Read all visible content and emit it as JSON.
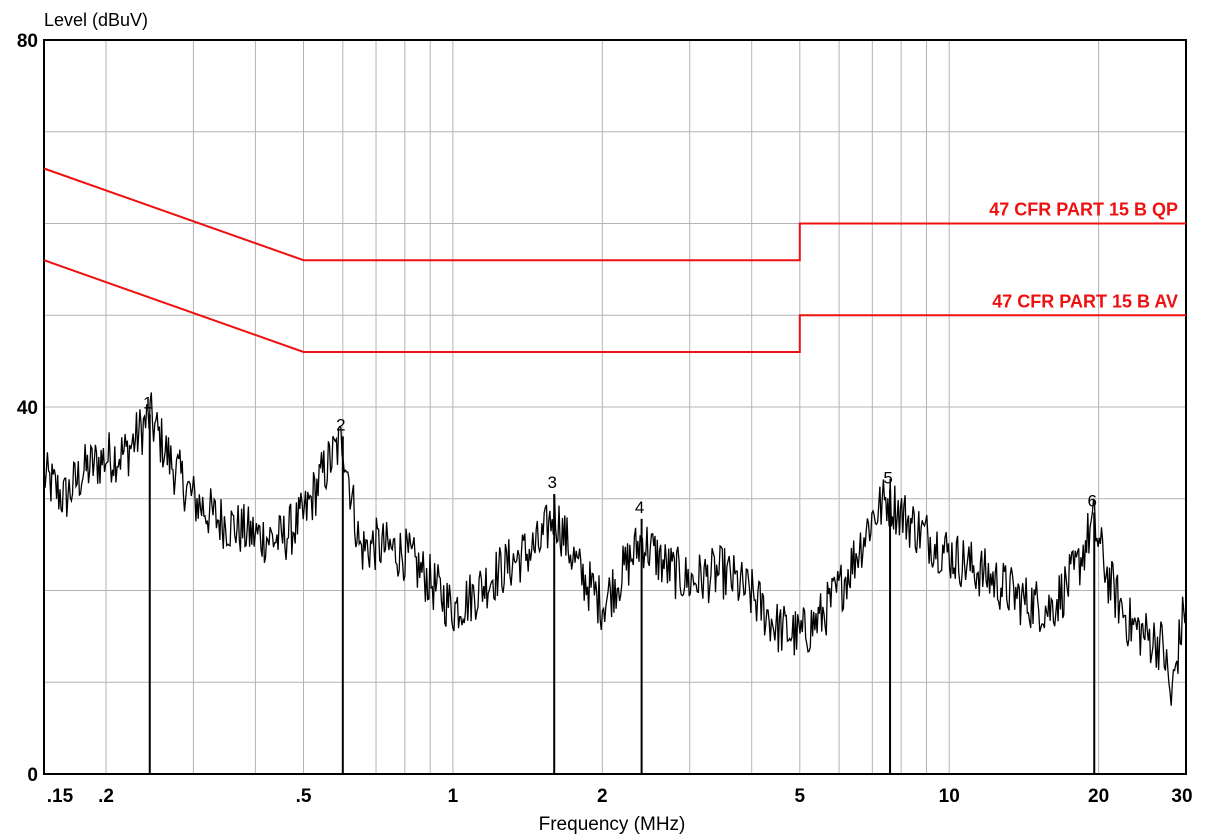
{
  "chart_data": {
    "type": "line",
    "ylabel": "Level (dBuV)",
    "xlabel": "Frequency (MHz)",
    "x_scale": "log",
    "xlim": [
      0.15,
      30
    ],
    "ylim": [
      0,
      80
    ],
    "grid": true,
    "x_ticks": [
      {
        "value": 0.15,
        "label": ".15"
      },
      {
        "value": 0.2,
        "label": ".2"
      },
      {
        "value": 0.5,
        "label": ".5"
      },
      {
        "value": 1,
        "label": "1"
      },
      {
        "value": 2,
        "label": "2"
      },
      {
        "value": 5,
        "label": "5"
      },
      {
        "value": 10,
        "label": "10"
      },
      {
        "value": 20,
        "label": "20"
      },
      {
        "value": 30,
        "label": "30"
      }
    ],
    "y_ticks": [
      {
        "value": 0,
        "label": "0"
      },
      {
        "value": 40,
        "label": "40"
      },
      {
        "value": 80,
        "label": "80"
      }
    ],
    "limit_lines": [
      {
        "name": "47 CFR PART 15 B QP",
        "color": "#ee1111",
        "points": [
          [
            0.15,
            66
          ],
          [
            0.5,
            56
          ],
          [
            5,
            56
          ],
          [
            5,
            60
          ],
          [
            30,
            60
          ]
        ]
      },
      {
        "name": "47 CFR PART 15 B AV",
        "color": "#ee1111",
        "points": [
          [
            0.15,
            56
          ],
          [
            0.5,
            46
          ],
          [
            5,
            46
          ],
          [
            5,
            50
          ],
          [
            30,
            50
          ]
        ]
      }
    ],
    "trace": {
      "color": "#000000",
      "points": [
        [
          0.15,
          32.5
        ],
        [
          0.165,
          30
        ],
        [
          0.18,
          33
        ],
        [
          0.2,
          34.5
        ],
        [
          0.22,
          35
        ],
        [
          0.245,
          39
        ],
        [
          0.27,
          34
        ],
        [
          0.3,
          30
        ],
        [
          0.33,
          28
        ],
        [
          0.36,
          27
        ],
        [
          0.4,
          26
        ],
        [
          0.45,
          25.5
        ],
        [
          0.5,
          28
        ],
        [
          0.55,
          33
        ],
        [
          0.6,
          36.5
        ],
        [
          0.65,
          24.5
        ],
        [
          0.7,
          25
        ],
        [
          0.8,
          24
        ],
        [
          0.9,
          21
        ],
        [
          1.0,
          18
        ],
        [
          1.1,
          19.5
        ],
        [
          1.2,
          21.5
        ],
        [
          1.35,
          23.5
        ],
        [
          1.5,
          25
        ],
        [
          1.6,
          28.5
        ],
        [
          1.8,
          22
        ],
        [
          2.0,
          18.5
        ],
        [
          2.2,
          22
        ],
        [
          2.4,
          25.5
        ],
        [
          2.7,
          22.5
        ],
        [
          3.0,
          21
        ],
        [
          3.5,
          22
        ],
        [
          4.0,
          19.5
        ],
        [
          4.5,
          16
        ],
        [
          5.0,
          15
        ],
        [
          5.5,
          17
        ],
        [
          6.0,
          20
        ],
        [
          6.5,
          24
        ],
        [
          7.0,
          28
        ],
        [
          7.5,
          30
        ],
        [
          8.5,
          27
        ],
        [
          10.0,
          24
        ],
        [
          12.0,
          21.5
        ],
        [
          14.0,
          19
        ],
        [
          16.0,
          18
        ],
        [
          18.0,
          22
        ],
        [
          19.5,
          27.5
        ],
        [
          21.0,
          21
        ],
        [
          23.0,
          16.5
        ],
        [
          25.0,
          15
        ],
        [
          27.0,
          14
        ],
        [
          28.0,
          8
        ],
        [
          29.0,
          14
        ],
        [
          30.0,
          19
        ]
      ]
    },
    "markers": [
      {
        "label": "1",
        "freq": 0.245,
        "level": 39.2
      },
      {
        "label": "2",
        "freq": 0.6,
        "level": 36.8
      },
      {
        "label": "3",
        "freq": 1.6,
        "level": 30.5
      },
      {
        "label": "4",
        "freq": 2.4,
        "level": 27.8
      },
      {
        "label": "5",
        "freq": 7.6,
        "level": 31.0
      },
      {
        "label": "6",
        "freq": 19.6,
        "level": 28.5
      }
    ]
  }
}
